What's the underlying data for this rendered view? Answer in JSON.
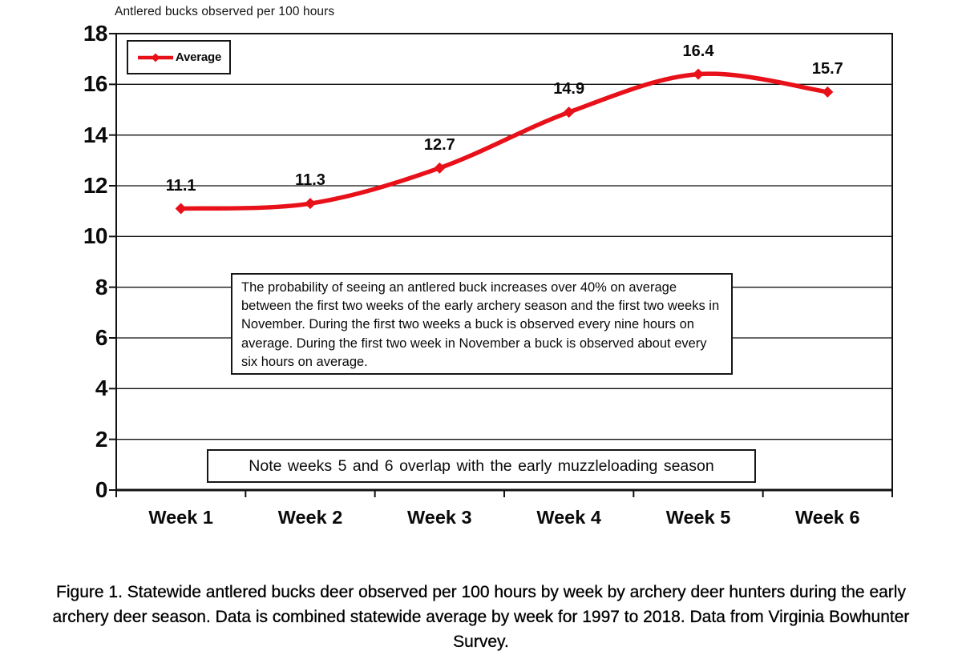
{
  "chart_data": {
    "type": "line",
    "title": "Antlered bucks observed per 100 hours",
    "categories": [
      "Week 1",
      "Week 2",
      "Week 3",
      "Week 4",
      "Week 5",
      "Week 6"
    ],
    "series": [
      {
        "name": "Average",
        "values": [
          11.1,
          11.3,
          12.7,
          14.9,
          16.4,
          15.7
        ],
        "color": "#e8111a",
        "marker": "diamond",
        "smooth": true
      }
    ],
    "data_labels": [
      "11.1",
      "11.3",
      "12.7",
      "14.9",
      "16.4",
      "15.7"
    ],
    "xlabel": "",
    "ylabel": "",
    "ylim": [
      0,
      18
    ],
    "yticks": [
      0,
      2,
      4,
      6,
      8,
      10,
      12,
      14,
      16,
      18
    ],
    "grid": "horizontal",
    "legend_position": "top-left"
  },
  "annotations": {
    "probability_note": "The probability of seeing an antlered buck increases over 40% on average between the first two weeks of the early archery season and the first two weeks in November.  During the first two weeks a buck is observed every nine hours on average.  During the first two week in November a buck is observed about every six hours on average.",
    "overlap_note": "Note weeks 5 and 6 overlap with the early muzzleloading season"
  },
  "caption": {
    "lines": [
      "Figure 1.  Statewide antlered bucks deer observed per 100 hours by week by archery deer hunters during the early",
      "archery deer season.  Data is combined statewide average by week for 1997 to 2018.  Data from Virginia  Bowhunter",
      "Survey."
    ]
  },
  "colors": {
    "series_red": "#e8111a",
    "axis": "#111111"
  }
}
